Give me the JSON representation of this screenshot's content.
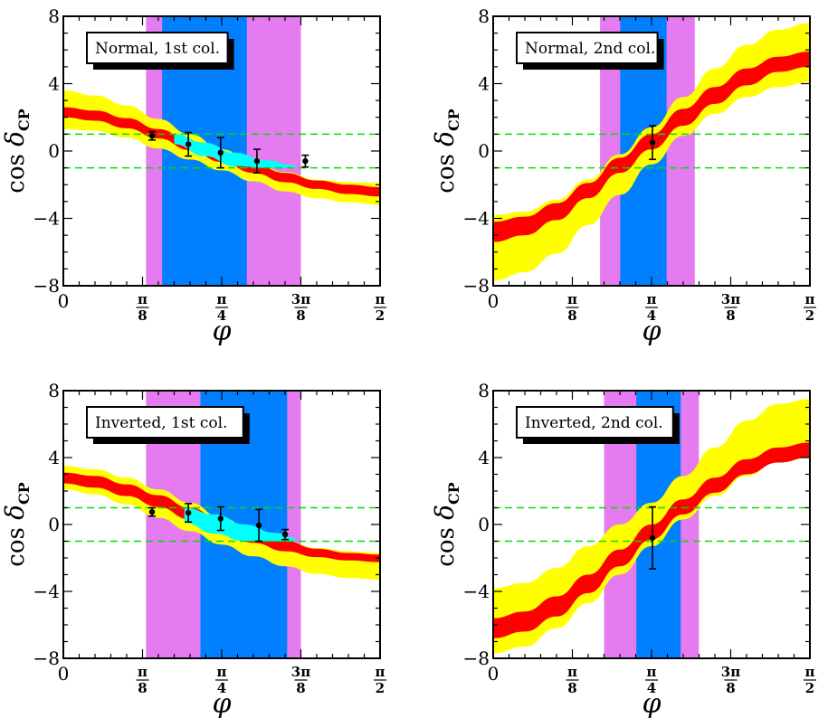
{
  "chart_data": [
    {
      "type": "area",
      "title": "Normal, 1st col.",
      "xlabel": "φ",
      "ylabel": "cos δ",
      "ylabel_sub": "CP",
      "xlim": [
        0,
        1.5708
      ],
      "ylim": [
        -8,
        8
      ],
      "xticks": [
        {
          "value": 0,
          "label": "0",
          "num": "",
          "den": ""
        },
        {
          "value": 0.3927,
          "label": "",
          "num": "π",
          "den": "8"
        },
        {
          "value": 0.7854,
          "label": "",
          "num": "π",
          "den": "4"
        },
        {
          "value": 1.1781,
          "label": "",
          "num": "3π",
          "den": "8"
        },
        {
          "value": 1.5708,
          "label": "",
          "num": "π",
          "den": "2"
        }
      ],
      "yticks": [
        {
          "value": -8,
          "label": "−8"
        },
        {
          "value": -4,
          "label": "−4"
        },
        {
          "value": 0,
          "label": "0"
        },
        {
          "value": 4,
          "label": "4"
        },
        {
          "value": 8,
          "label": "8"
        }
      ],
      "dashed_lines": [
        1,
        -1
      ],
      "bands": [
        {
          "name": "outer",
          "color": "#e57bf0",
          "x0": 0.41,
          "x1": 1.1781
        },
        {
          "name": "inner",
          "color": "#0080ff",
          "x0": 0.49,
          "x1": 0.91
        }
      ],
      "series": [
        {
          "name": "yellow-band",
          "color": "#ffff00",
          "x": [
            0,
            0.157,
            0.314,
            0.471,
            0.628,
            0.785,
            0.942,
            1.1,
            1.257,
            1.414,
            1.571
          ],
          "lower": [
            1.3,
            1.2,
            0.8,
            0.15,
            -0.5,
            -1.15,
            -1.8,
            -2.4,
            -2.8,
            -3.05,
            -3.2
          ],
          "upper": [
            3.6,
            3.3,
            2.7,
            1.9,
            1.0,
            0.1,
            -0.7,
            -1.25,
            -1.7,
            -1.85,
            -1.9
          ]
        },
        {
          "name": "red-band",
          "color": "#ff0000",
          "x": [
            0,
            0.157,
            0.314,
            0.471,
            0.628,
            0.785,
            0.942,
            1.1,
            1.257,
            1.414,
            1.571
          ],
          "lower": [
            2.0,
            1.8,
            1.35,
            0.75,
            0.05,
            -0.65,
            -1.3,
            -1.85,
            -2.25,
            -2.55,
            -2.7
          ],
          "upper": [
            2.6,
            2.4,
            1.95,
            1.3,
            0.6,
            -0.1,
            -0.75,
            -1.3,
            -1.75,
            -2.0,
            -2.15
          ]
        },
        {
          "name": "cyan-band",
          "color": "#00ffff",
          "x": [
            0.55,
            0.7,
            0.85,
            1.0,
            1.15
          ],
          "lower": [
            0.4,
            -0.3,
            -0.9,
            -1.0,
            -1.0
          ],
          "upper": [
            1.0,
            0.5,
            -0.1,
            -0.55,
            -0.85
          ]
        },
        {
          "name": "measurements",
          "color": "#000000",
          "points": [
            {
              "x": 0.44,
              "y": 0.9,
              "err": 0.25
            },
            {
              "x": 0.62,
              "y": 0.4,
              "err": 0.7
            },
            {
              "x": 0.78,
              "y": -0.1,
              "err": 0.9
            },
            {
              "x": 0.96,
              "y": -0.6,
              "err": 0.7
            },
            {
              "x": 1.2,
              "y": -0.6,
              "err": 0.35
            }
          ]
        }
      ],
      "legend": "top-left"
    },
    {
      "type": "area",
      "title": "Normal, 2nd col.",
      "xlabel": "φ",
      "ylabel": "cos δ",
      "ylabel_sub": "CP",
      "xlim": [
        0,
        1.5708
      ],
      "ylim": [
        -8,
        8
      ],
      "xticks": [
        {
          "value": 0,
          "label": "0",
          "num": "",
          "den": ""
        },
        {
          "value": 0.3927,
          "label": "",
          "num": "π",
          "den": "8"
        },
        {
          "value": 0.7854,
          "label": "",
          "num": "π",
          "den": "4"
        },
        {
          "value": 1.1781,
          "label": "",
          "num": "3π",
          "den": "8"
        },
        {
          "value": 1.5708,
          "label": "",
          "num": "π",
          "den": "2"
        }
      ],
      "yticks": [
        {
          "value": -8,
          "label": "−8"
        },
        {
          "value": -4,
          "label": "−4"
        },
        {
          "value": 0,
          "label": "0"
        },
        {
          "value": 4,
          "label": "4"
        },
        {
          "value": 8,
          "label": "8"
        }
      ],
      "dashed_lines": [
        1,
        -1
      ],
      "bands": [
        {
          "name": "outer",
          "color": "#e57bf0",
          "x0": 0.53,
          "x1": 1.0
        },
        {
          "name": "inner",
          "color": "#0080ff",
          "x0": 0.63,
          "x1": 0.86
        }
      ],
      "series": [
        {
          "name": "yellow-band",
          "color": "#ffff00",
          "x": [
            0,
            0.157,
            0.314,
            0.471,
            0.628,
            0.785,
            0.942,
            1.1,
            1.257,
            1.414,
            1.571
          ],
          "lower": [
            -7.7,
            -7.2,
            -6.1,
            -4.4,
            -2.6,
            -0.8,
            0.9,
            2.2,
            3.2,
            3.8,
            4.1
          ],
          "upper": [
            -3.8,
            -3.6,
            -2.9,
            -1.7,
            -0.2,
            1.4,
            3.2,
            4.9,
            6.3,
            7.2,
            7.6
          ]
        },
        {
          "name": "red-band",
          "color": "#ff0000",
          "x": [
            0,
            0.157,
            0.314,
            0.471,
            0.628,
            0.785,
            0.942,
            1.1,
            1.257,
            1.414,
            1.571
          ],
          "lower": [
            -5.4,
            -5.0,
            -4.1,
            -2.8,
            -1.3,
            0.1,
            1.5,
            2.8,
            3.9,
            4.7,
            5.0
          ],
          "upper": [
            -4.2,
            -3.9,
            -3.1,
            -1.9,
            -0.4,
            1.0,
            2.5,
            3.8,
            4.9,
            5.6,
            5.9
          ]
        },
        {
          "name": "cyan-band",
          "color": "#00ffff",
          "x": [],
          "lower": [],
          "upper": []
        },
        {
          "name": "measurements",
          "color": "#000000",
          "points": [
            {
              "x": 0.79,
              "y": 0.5,
              "err": 1.0
            }
          ]
        }
      ],
      "legend": "top-left"
    },
    {
      "type": "area",
      "title": "Inverted, 1st col.",
      "xlabel": "φ",
      "ylabel": "cos δ",
      "ylabel_sub": "CP",
      "xlim": [
        0,
        1.5708
      ],
      "ylim": [
        -8,
        8
      ],
      "xticks": [
        {
          "value": 0,
          "label": "0",
          "num": "",
          "den": ""
        },
        {
          "value": 0.3927,
          "label": "",
          "num": "π",
          "den": "8"
        },
        {
          "value": 0.7854,
          "label": "",
          "num": "π",
          "den": "4"
        },
        {
          "value": 1.1781,
          "label": "",
          "num": "3π",
          "den": "8"
        },
        {
          "value": 1.5708,
          "label": "",
          "num": "π",
          "den": "2"
        }
      ],
      "yticks": [
        {
          "value": -8,
          "label": "−8"
        },
        {
          "value": -4,
          "label": "−4"
        },
        {
          "value": 0,
          "label": "0"
        },
        {
          "value": 4,
          "label": "4"
        },
        {
          "value": 8,
          "label": "8"
        }
      ],
      "dashed_lines": [
        1,
        -1
      ],
      "bands": [
        {
          "name": "outer",
          "color": "#e57bf0",
          "x0": 0.41,
          "x1": 1.1781
        },
        {
          "name": "inner",
          "color": "#0080ff",
          "x0": 0.68,
          "x1": 1.11
        }
      ],
      "series": [
        {
          "name": "yellow-band",
          "color": "#ffff00",
          "x": [
            0,
            0.157,
            0.314,
            0.471,
            0.628,
            0.785,
            0.942,
            1.1,
            1.257,
            1.414,
            1.571
          ],
          "lower": [
            2.1,
            1.8,
            1.2,
            0.4,
            -0.4,
            -1.2,
            -1.9,
            -2.5,
            -2.95,
            -3.2,
            -3.3
          ],
          "upper": [
            3.5,
            3.3,
            2.8,
            2.1,
            1.3,
            0.4,
            -0.4,
            -1.0,
            -1.4,
            -1.6,
            -1.7
          ]
        },
        {
          "name": "red-band",
          "color": "#ff0000",
          "x": [
            0,
            0.157,
            0.314,
            0.471,
            0.628,
            0.785,
            0.942,
            1.1,
            1.257,
            1.414,
            1.571
          ],
          "lower": [
            2.45,
            2.2,
            1.7,
            1.05,
            0.3,
            -0.45,
            -1.1,
            -1.6,
            -1.95,
            -2.15,
            -2.25
          ],
          "upper": [
            3.1,
            2.9,
            2.4,
            1.75,
            1.0,
            0.25,
            -0.45,
            -1.0,
            -1.45,
            -1.7,
            -1.8
          ]
        },
        {
          "name": "cyan-band",
          "color": "#00ffff",
          "x": [
            0.6,
            0.75,
            0.9,
            1.05,
            1.15
          ],
          "lower": [
            0.1,
            -0.55,
            -1.0,
            -1.0,
            -1.0
          ],
          "upper": [
            1.0,
            0.6,
            0.0,
            -0.5,
            -0.8
          ]
        },
        {
          "name": "measurements",
          "color": "#000000",
          "points": [
            {
              "x": 0.44,
              "y": 0.75,
              "err": 0.25
            },
            {
              "x": 0.62,
              "y": 0.7,
              "err": 0.55
            },
            {
              "x": 0.78,
              "y": 0.35,
              "err": 0.7
            },
            {
              "x": 0.97,
              "y": -0.05,
              "err": 0.95
            },
            {
              "x": 1.1,
              "y": -0.6,
              "err": 0.3
            }
          ]
        }
      ],
      "legend": "top-left"
    },
    {
      "type": "area",
      "title": "Inverted, 2nd col.",
      "xlabel": "φ",
      "ylabel": "cos δ",
      "ylabel_sub": "CP",
      "xlim": [
        0,
        1.5708
      ],
      "ylim": [
        -8,
        8
      ],
      "xticks": [
        {
          "value": 0,
          "label": "0",
          "num": "",
          "den": ""
        },
        {
          "value": 0.3927,
          "label": "",
          "num": "π",
          "den": "8"
        },
        {
          "value": 0.7854,
          "label": "",
          "num": "π",
          "den": "4"
        },
        {
          "value": 1.1781,
          "label": "",
          "num": "3π",
          "den": "8"
        },
        {
          "value": 1.5708,
          "label": "",
          "num": "π",
          "den": "2"
        }
      ],
      "yticks": [
        {
          "value": -8,
          "label": "−8"
        },
        {
          "value": -4,
          "label": "−4"
        },
        {
          "value": 0,
          "label": "0"
        },
        {
          "value": 4,
          "label": "4"
        },
        {
          "value": 8,
          "label": "8"
        }
      ],
      "dashed_lines": [
        1,
        -1
      ],
      "bands": [
        {
          "name": "outer",
          "color": "#e57bf0",
          "x0": 0.55,
          "x1": 1.02
        },
        {
          "name": "inner",
          "color": "#0080ff",
          "x0": 0.71,
          "x1": 0.93
        }
      ],
      "series": [
        {
          "name": "yellow-band",
          "color": "#ffff00",
          "x": [
            0,
            0.157,
            0.314,
            0.471,
            0.628,
            0.785,
            0.942,
            1.1,
            1.257,
            1.414,
            1.571
          ],
          "lower": [
            -7.7,
            -7.3,
            -6.2,
            -4.7,
            -3.0,
            -1.3,
            0.3,
            1.7,
            2.9,
            3.8,
            4.2
          ],
          "upper": [
            -3.8,
            -3.5,
            -2.6,
            -1.3,
            0.0,
            1.3,
            2.9,
            4.6,
            6.2,
            7.2,
            7.5
          ]
        },
        {
          "name": "red-band",
          "color": "#ff0000",
          "x": [
            0,
            0.157,
            0.314,
            0.471,
            0.628,
            0.785,
            0.942,
            1.1,
            1.257,
            1.414,
            1.571
          ],
          "lower": [
            -6.8,
            -6.4,
            -5.5,
            -4.1,
            -2.5,
            -0.9,
            0.6,
            1.9,
            3.0,
            3.7,
            4.0
          ],
          "upper": [
            -5.6,
            -5.2,
            -4.3,
            -3.0,
            -1.5,
            0.0,
            1.5,
            2.8,
            3.9,
            4.6,
            4.9
          ]
        },
        {
          "name": "cyan-band",
          "color": "#00ffff",
          "x": [],
          "lower": [],
          "upper": []
        },
        {
          "name": "measurements",
          "color": "#000000",
          "points": [
            {
              "x": 0.79,
              "y": -0.8,
              "err": 1.85
            }
          ]
        }
      ],
      "legend": "top-left"
    }
  ],
  "colors": {
    "dashed": "#00e000",
    "axis": "#000000"
  }
}
